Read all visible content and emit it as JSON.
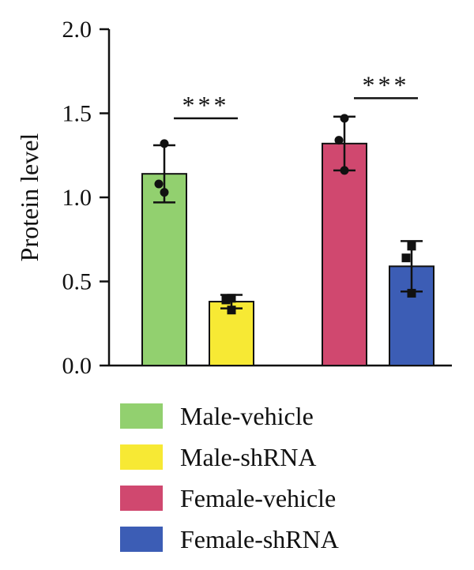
{
  "chart_data": {
    "type": "bar",
    "ylabel": "Protein level",
    "ylim": [
      0,
      2.0
    ],
    "yticks": [
      {
        "value": 0.0,
        "label": "0.0"
      },
      {
        "value": 0.5,
        "label": "0.5"
      },
      {
        "value": 1.0,
        "label": "1.0"
      },
      {
        "value": 1.5,
        "label": "1.5"
      },
      {
        "value": 2.0,
        "label": "2.0"
      }
    ],
    "grid": false,
    "legend_position": "bottom",
    "series": [
      {
        "name": "Male-vehicle",
        "color": "#92d06f",
        "value": 1.14,
        "error": 0.17,
        "marker": "circle",
        "points": [
          1.32,
          1.08,
          1.03
        ]
      },
      {
        "name": "Male-shRNA",
        "color": "#f7e934",
        "value": 0.38,
        "error": 0.04,
        "marker": "square",
        "points": [
          0.4,
          0.39,
          0.33
        ]
      },
      {
        "name": "Female-vehicle",
        "color": "#d0486f",
        "value": 1.32,
        "error": 0.16,
        "marker": "circle",
        "points": [
          1.47,
          1.34,
          1.16
        ]
      },
      {
        "name": "Female-shRNA",
        "color": "#3c5db5",
        "value": 0.59,
        "error": 0.15,
        "marker": "square",
        "points": [
          0.71,
          0.64,
          0.43
        ]
      }
    ],
    "significance": [
      {
        "pair": [
          0,
          1
        ],
        "label": "***",
        "y": 1.47
      },
      {
        "pair": [
          2,
          3
        ],
        "label": "***",
        "y": 1.59
      }
    ]
  }
}
